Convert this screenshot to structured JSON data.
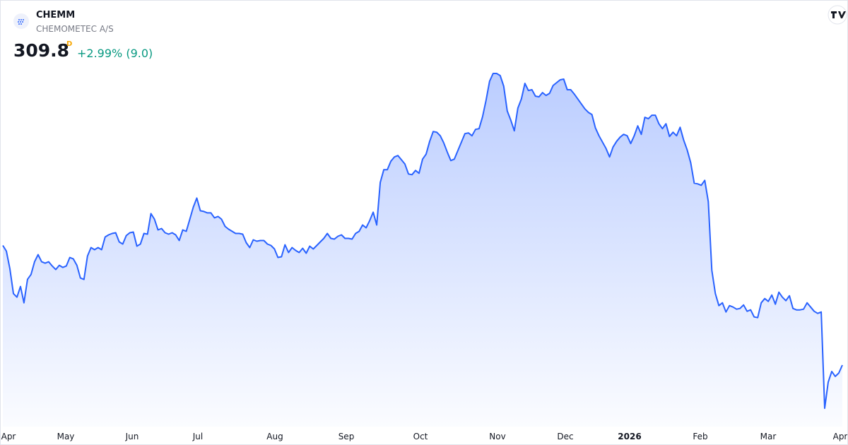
{
  "header": {
    "symbol": "CHEMM",
    "name": "CHEMOMETEC A/S",
    "price": "309.8",
    "interval": "D",
    "change": "+2.99% (9.0)"
  },
  "chart_data": {
    "type": "area",
    "color": "#2962ff",
    "x_labels": [
      "Apr",
      "May",
      "Jun",
      "Jul",
      "Aug",
      "Sep",
      "Oct",
      "Nov",
      "Dec",
      "2026",
      "Feb",
      "Mar",
      "Apr"
    ],
    "values": [
      445.0,
      438.6,
      418.6,
      390.6,
      386.6,
      398.6,
      380.2,
      406.6,
      412.2,
      426.6,
      434.6,
      426.6,
      425.0,
      426.6,
      421.8,
      417.8,
      422.6,
      420.2,
      421.8,
      431.4,
      429.8,
      422.6,
      408.2,
      406.6,
      433.0,
      442.6,
      440.2,
      442.6,
      440.2,
      454.6,
      457.0,
      458.6,
      459.4,
      449.0,
      446.6,
      456.2,
      459.4,
      460.2,
      444.2,
      446.6,
      458.6,
      457.8,
      481.0,
      474.6,
      462.6,
      464.2,
      459.4,
      457.8,
      459.4,
      457.0,
      450.6,
      462.6,
      461.0,
      474.6,
      488.2,
      498.6,
      484.2,
      483.4,
      481.8,
      481.8,
      476.2,
      477.8,
      474.6,
      466.6,
      463.4,
      461.0,
      458.6,
      458.6,
      457.8,
      448.2,
      442.6,
      451.4,
      449.8,
      450.6,
      450.6,
      446.6,
      445.0,
      441.0,
      431.4,
      432.2,
      445.8,
      437.0,
      442.6,
      439.4,
      437.0,
      441.8,
      436.2,
      444.2,
      441.0,
      445.0,
      449.0,
      453.0,
      458.6,
      453.0,
      452.2,
      455.4,
      457.0,
      453.0,
      453.0,
      452.2,
      458.6,
      461.0,
      468.2,
      465.0,
      473.0,
      482.6,
      468.2,
      516.2,
      530.6,
      530.6,
      540.2,
      545.0,
      546.6,
      541.8,
      537.0,
      525.8,
      525.0,
      529.8,
      526.6,
      542.6,
      548.2,
      562.6,
      573.8,
      573.0,
      569.0,
      561.0,
      550.6,
      541.0,
      542.6,
      552.2,
      561.8,
      571.4,
      572.2,
      569.0,
      576.2,
      577.0,
      590.6,
      609.0,
      630.6,
      639.4,
      639.4,
      637.0,
      625.0,
      597.0,
      586.6,
      574.6,
      600.2,
      610.6,
      628.2,
      620.2,
      621.0,
      613.8,
      613.0,
      617.8,
      614.6,
      617.0,
      625.8,
      629.0,
      632.2,
      633.0,
      621.0,
      621.0,
      616.2,
      610.6,
      605.0,
      599.4,
      595.4,
      593.0,
      577.8,
      569.0,
      561.8,
      554.6,
      545.0,
      556.2,
      562.6,
      567.4,
      570.6,
      569.0,
      560.2,
      569.0,
      580.2,
      570.6,
      589.8,
      588.2,
      592.2,
      592.2,
      582.6,
      577.0,
      582.6,
      568.2,
      573.0,
      569.0,
      578.6,
      564.2,
      553.0,
      538.6,
      515.4,
      514.6,
      513.0,
      518.6,
      494.6,
      417.0,
      390.6,
      377.0,
      380.2,
      369.8,
      377.0,
      375.4,
      373.0,
      373.8,
      377.8,
      370.6,
      372.2,
      364.2,
      363.4,
      380.2,
      385.0,
      381.8,
      389.0,
      378.6,
      392.2,
      386.6,
      382.6,
      388.2,
      373.8,
      372.2,
      372.2,
      373.0,
      380.2,
      375.4,
      370.6,
      368.2,
      369.8,
      261.0,
      290.6,
      302.6,
      297.0,
      300.8,
      309.8
    ]
  }
}
